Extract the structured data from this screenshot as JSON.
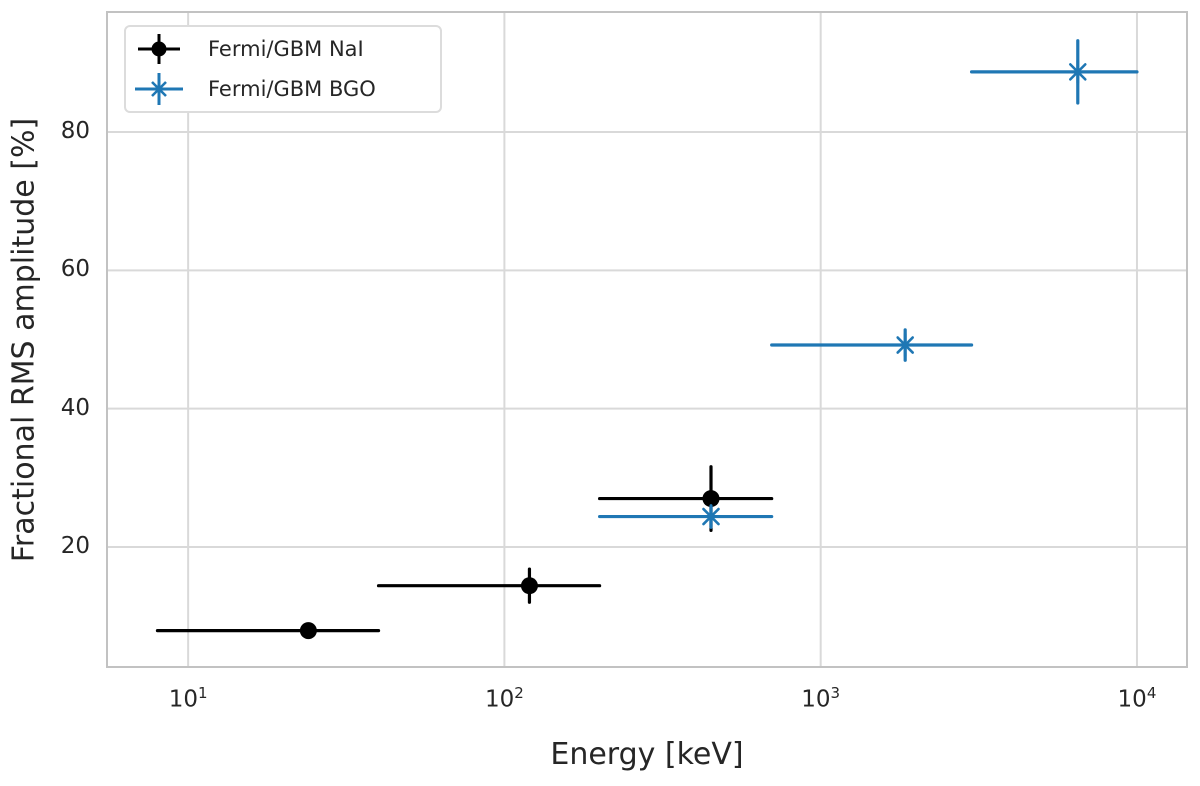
{
  "chart_data": {
    "type": "scatter",
    "title": "",
    "xlabel": "Energy [keV]",
    "ylabel": "Fractional RMS amplitude [%]",
    "x_scale": "log",
    "y_scale": "linear",
    "xlim": [
      5.5,
      14500
    ],
    "ylim": [
      2.5,
      97.5
    ],
    "x_ticks": [
      {
        "value": 10,
        "base": "10",
        "exp": "1"
      },
      {
        "value": 100,
        "base": "10",
        "exp": "2"
      },
      {
        "value": 1000,
        "base": "10",
        "exp": "3"
      },
      {
        "value": 10000,
        "base": "10",
        "exp": "4"
      }
    ],
    "y_ticks": [
      20,
      40,
      60,
      80
    ],
    "grid": true,
    "legend": {
      "position": "upper-left"
    },
    "colors": {
      "background": "#ffffff",
      "grid": "#d9d9d9",
      "spine": "#c2c2c2",
      "text": "#262626",
      "nai": "#000000",
      "bgo": "#1f77b4"
    },
    "series": [
      {
        "name": "Fermi/GBM NaI",
        "marker": "circle",
        "color": "#000000",
        "points": [
          {
            "x": 24,
            "x_lo": 8,
            "x_hi": 40,
            "y": 7.9,
            "y_err": 0.8
          },
          {
            "x": 120,
            "x_lo": 40,
            "x_hi": 200,
            "y": 14.4,
            "y_err": 2.4
          },
          {
            "x": 450,
            "x_lo": 200,
            "x_hi": 700,
            "y": 27.0,
            "y_err": 4.6
          }
        ]
      },
      {
        "name": "Fermi/GBM BGO",
        "marker": "asterisk",
        "color": "#1f77b4",
        "points": [
          {
            "x": 450,
            "x_lo": 200,
            "x_hi": 700,
            "y": 24.4,
            "y_err": 1.5
          },
          {
            "x": 1850,
            "x_lo": 700,
            "x_hi": 3000,
            "y": 49.2,
            "y_err": 2.2
          },
          {
            "x": 6500,
            "x_lo": 3000,
            "x_hi": 10000,
            "y": 88.7,
            "y_err": 4.5
          }
        ]
      }
    ]
  }
}
